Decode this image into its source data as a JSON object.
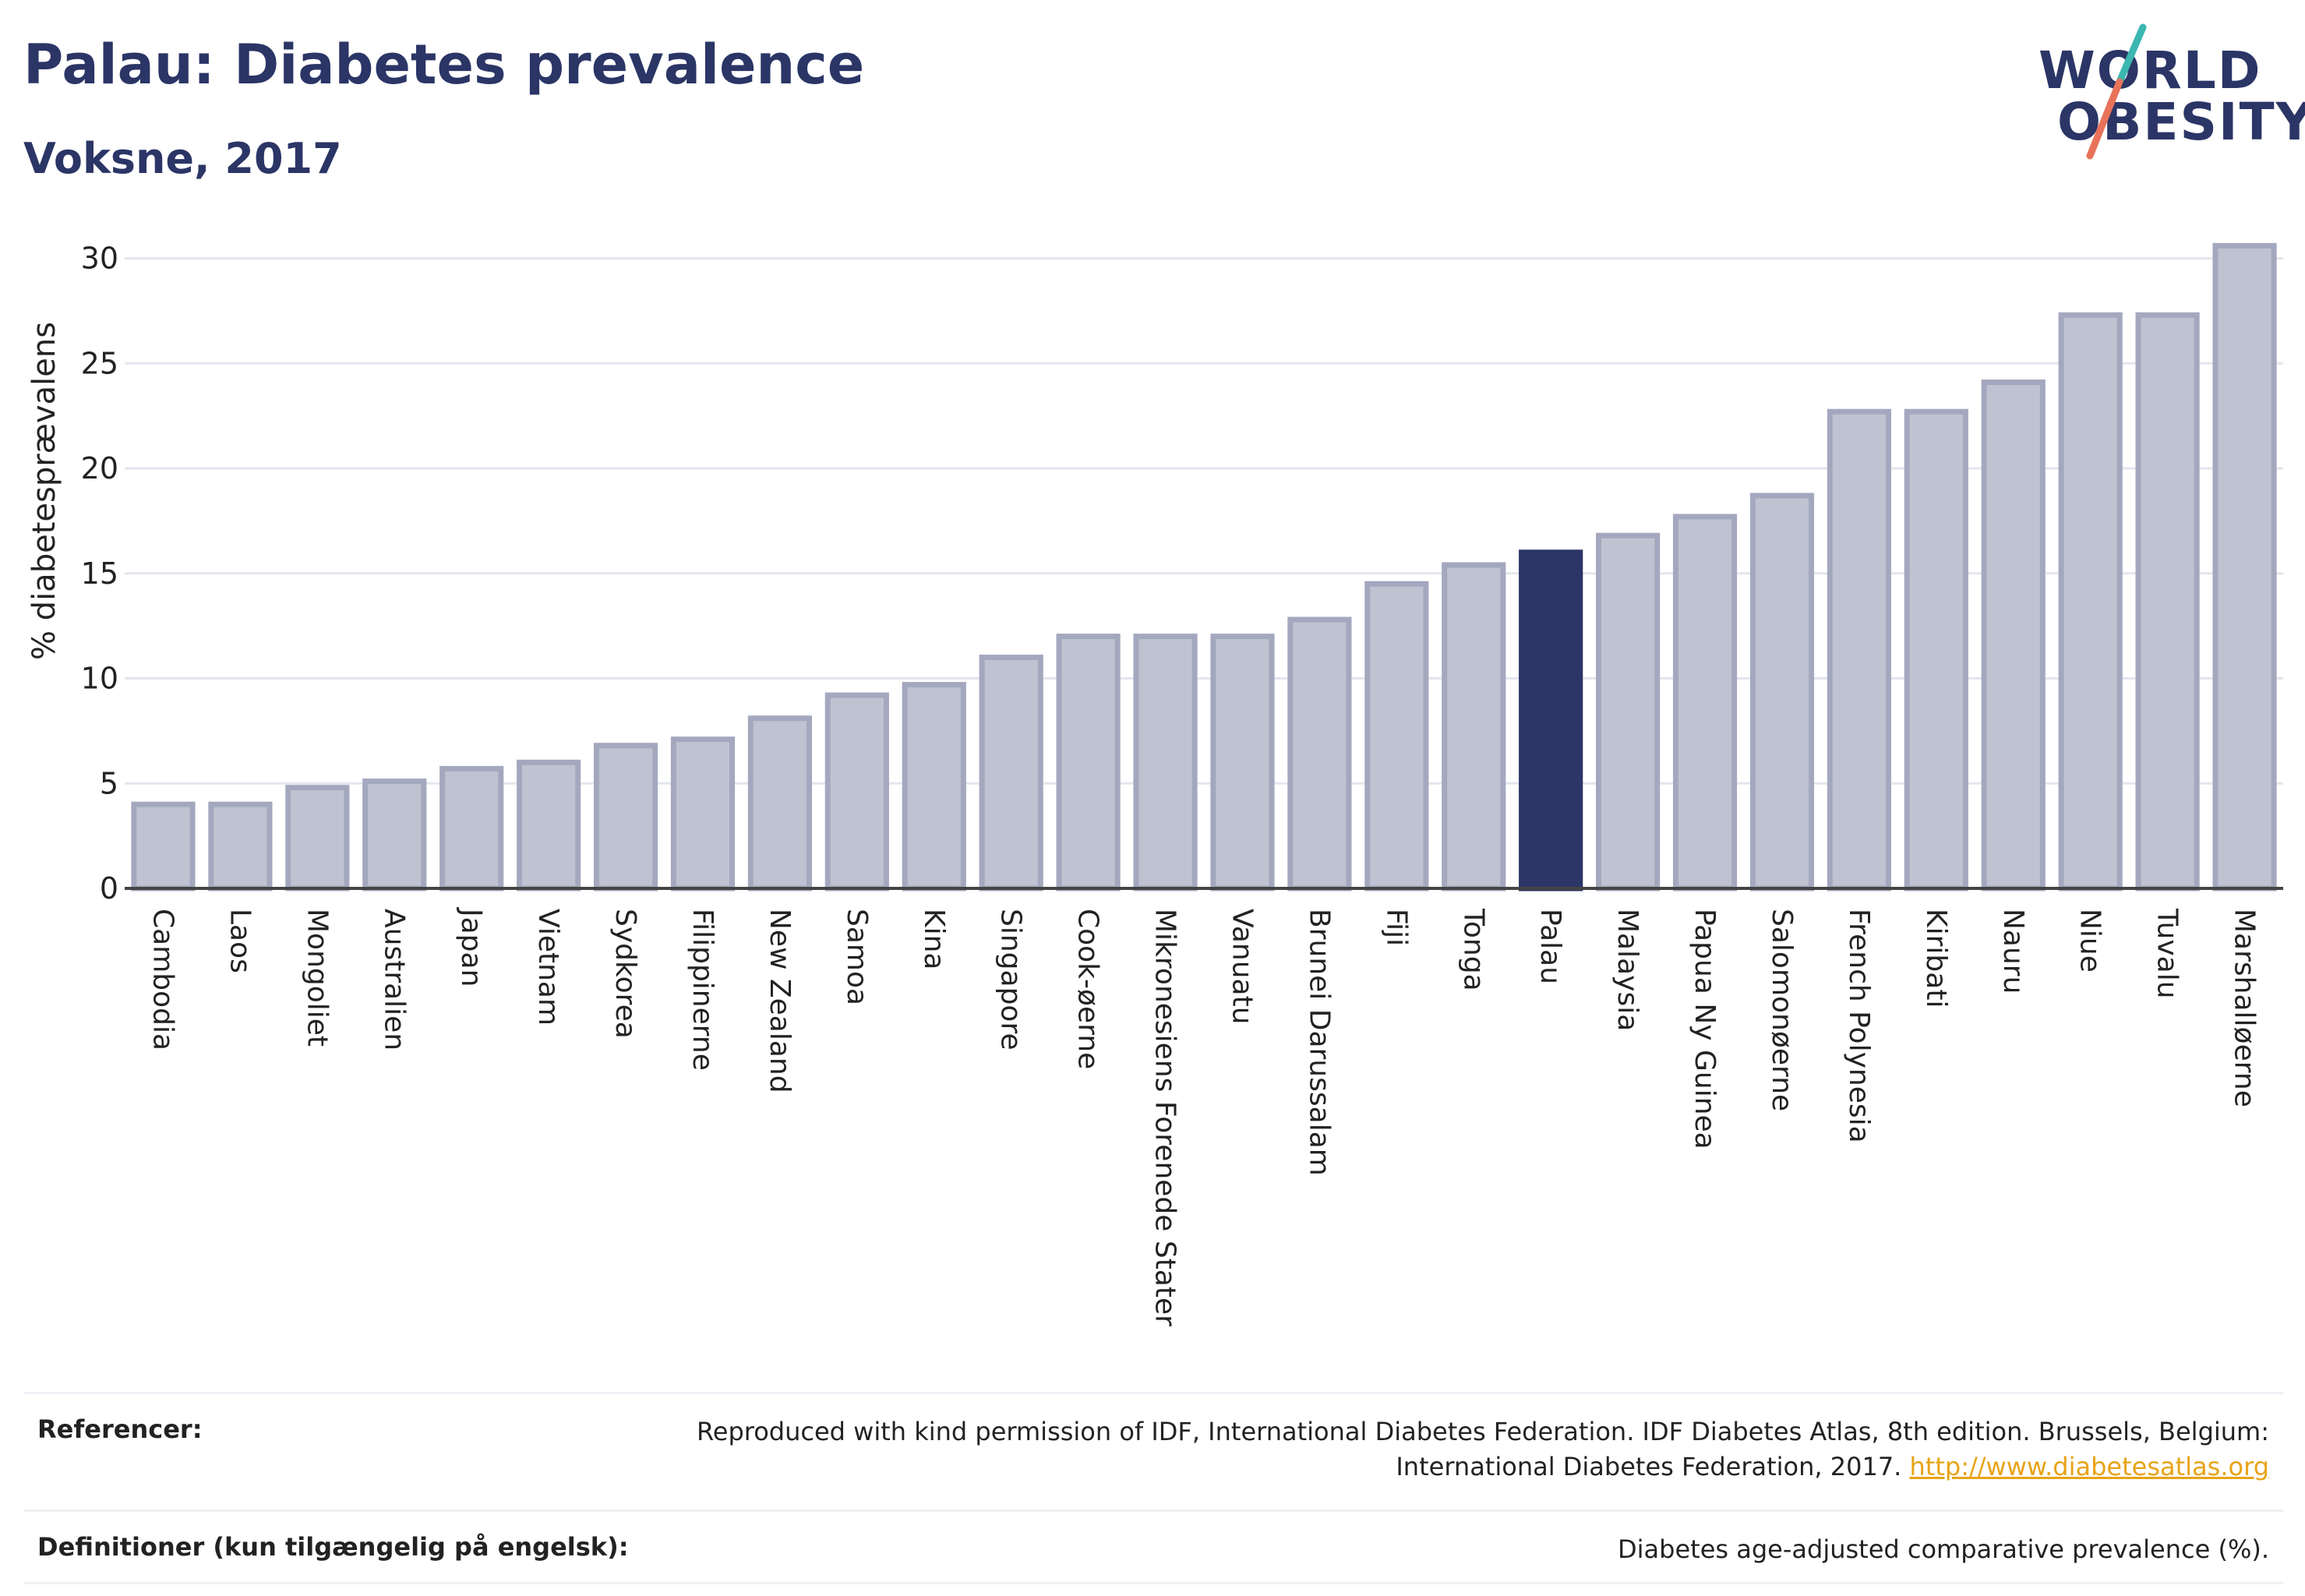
{
  "header": {
    "title": "Palau: Diabetes prevalence",
    "subtitle": "Voksne, 2017"
  },
  "logo": {
    "line1": "WORLD",
    "line2": "OBESITY",
    "colors": {
      "text": "#2b3566",
      "slash_top": "#3bb6b0",
      "slash_bottom": "#e8735a"
    }
  },
  "chart_data": {
    "type": "bar",
    "ylabel": "% diabetesprævalens",
    "ylim": [
      0,
      32
    ],
    "yticks": [
      0,
      5,
      10,
      15,
      20,
      25,
      30
    ],
    "grid": true,
    "highlight": "Palau",
    "colors": {
      "bar": "#bfc2d0",
      "bar_border": "#a4a8bf",
      "highlight": "#2b3566",
      "grid": "#e4e6ee"
    },
    "categories": [
      "Cambodia",
      "Laos",
      "Mongoliet",
      "Australien",
      "Japan",
      "Vietnam",
      "Sydkorea",
      "Filippinerne",
      "New Zealand",
      "Samoa",
      "Kina",
      "Singapore",
      "Cook-øerne",
      "Mikronesiens Forenede Stater",
      "Vanuatu",
      "Brunei Darussalam",
      "Fiji",
      "Tonga",
      "Palau",
      "Malaysia",
      "Papua Ny Guinea",
      "Salomonøerne",
      "French Polynesia",
      "Kiribati",
      "Nauru",
      "Niue",
      "Tuvalu",
      "Marshalløerne"
    ],
    "values": [
      4.0,
      4.0,
      4.8,
      5.1,
      5.7,
      6.0,
      6.8,
      7.1,
      8.1,
      9.2,
      9.7,
      11.0,
      12.0,
      12.0,
      12.0,
      12.8,
      14.5,
      15.4,
      16.0,
      16.8,
      17.7,
      18.7,
      22.7,
      22.7,
      24.1,
      27.3,
      27.3,
      30.6
    ]
  },
  "footer": {
    "ref_label": "Referencer:",
    "ref_text": "Reproduced with kind permission of IDF, International Diabetes Federation. IDF Diabetes Atlas, 8th edition. Brussels, Belgium:",
    "ref_text2": "International Diabetes Federation, 2017.",
    "ref_link": "http://www.diabetesatlas.org",
    "def_label": "Definitioner (kun tilgængelig på engelsk):",
    "def_text": "Diabetes age-adjusted comparative prevalence (%)."
  }
}
